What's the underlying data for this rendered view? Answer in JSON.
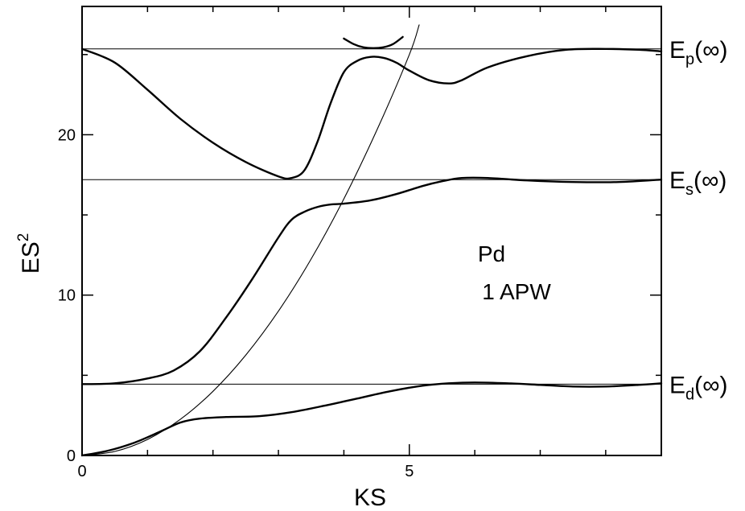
{
  "chart_data": {
    "type": "line",
    "xlabel": "KS",
    "ylabel_base": "ES",
    "ylabel_sup": "2",
    "xlim": [
      0,
      8.85
    ],
    "ylim": [
      0,
      28
    ],
    "x_ticks": [
      0,
      5
    ],
    "x_minor_ticks": [
      1,
      2,
      3,
      4,
      6,
      7,
      8
    ],
    "y_ticks": [
      0,
      10,
      20
    ],
    "y_minor_ticks": [
      5,
      15,
      25
    ],
    "grid": false,
    "annotation": [
      "Pd",
      "1 APW"
    ],
    "reference_lines": [
      {
        "label_main": "E",
        "label_sub": "p",
        "label_tail": "(∞)",
        "y": 25.35
      },
      {
        "label_main": "E",
        "label_sub": "s",
        "label_tail": "(∞)",
        "y": 17.2
      },
      {
        "label_main": "E",
        "label_sub": "d",
        "label_tail": "(∞)",
        "y": 4.45
      }
    ],
    "series": [
      {
        "style": "thick",
        "x": [
          0,
          0.5,
          1.0,
          1.5,
          2.0,
          2.5,
          3.0,
          3.2,
          3.4,
          3.6,
          3.8,
          4.0,
          4.2,
          4.4,
          4.6,
          4.8,
          5.0,
          5.3,
          5.6,
          5.8,
          6.2,
          6.8,
          7.4,
          8.0,
          8.5,
          8.85
        ],
        "y": [
          25.35,
          24.5,
          22.8,
          21.0,
          19.5,
          18.3,
          17.4,
          17.3,
          17.8,
          19.6,
          22.0,
          23.9,
          24.6,
          24.85,
          24.8,
          24.5,
          24.0,
          23.4,
          23.2,
          23.4,
          24.2,
          24.9,
          25.3,
          25.35,
          25.3,
          25.2
        ]
      },
      {
        "style": "thick",
        "x": [
          0,
          0.5,
          1.0,
          1.4,
          1.8,
          2.2,
          2.6,
          3.0,
          3.2,
          3.4,
          3.6,
          3.8,
          4.0,
          4.4,
          4.8,
          5.2,
          5.5,
          5.8,
          6.2,
          6.8,
          7.5,
          8.2,
          8.85
        ],
        "y": [
          4.45,
          4.5,
          4.8,
          5.3,
          6.5,
          8.6,
          11.0,
          13.6,
          14.7,
          15.2,
          15.5,
          15.65,
          15.7,
          15.9,
          16.3,
          16.8,
          17.1,
          17.3,
          17.3,
          17.15,
          17.05,
          17.05,
          17.2
        ]
      },
      {
        "style": "thick",
        "x": [
          0,
          0.4,
          0.8,
          1.2,
          1.5,
          1.8,
          2.2,
          2.7,
          3.2,
          3.7,
          4.2,
          4.7,
          5.2,
          5.6,
          6.0,
          6.5,
          7.0,
          7.5,
          8.0,
          8.5,
          8.85
        ],
        "y": [
          0.0,
          0.3,
          0.8,
          1.5,
          2.05,
          2.3,
          2.4,
          2.45,
          2.7,
          3.1,
          3.55,
          4.0,
          4.35,
          4.5,
          4.55,
          4.5,
          4.4,
          4.3,
          4.3,
          4.4,
          4.5
        ]
      },
      {
        "style": "thin",
        "x": [
          0,
          0.5,
          1.0,
          1.5,
          2.0,
          2.5,
          3.0,
          3.5,
          4.0,
          4.5,
          5.0,
          5.15
        ],
        "y": [
          0.0,
          0.25,
          1.0,
          2.25,
          4.0,
          6.25,
          9.0,
          12.25,
          16.0,
          20.25,
          25.0,
          26.85
        ]
      },
      {
        "style": "thick",
        "x": [
          4.0,
          4.15,
          4.3,
          4.45,
          4.6,
          4.75,
          4.9
        ],
        "y": [
          26.0,
          25.65,
          25.45,
          25.4,
          25.45,
          25.65,
          26.1
        ]
      }
    ]
  }
}
